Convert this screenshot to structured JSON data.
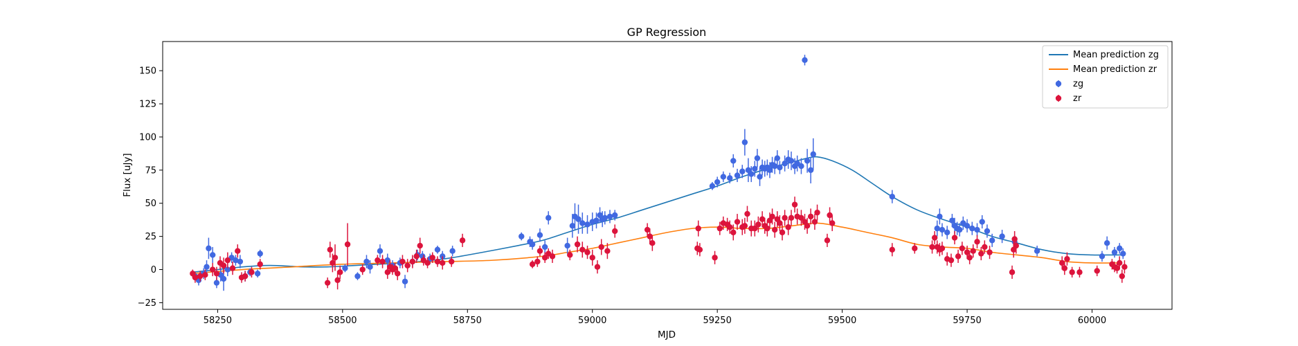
{
  "chart_data": {
    "type": "scatter",
    "title": "GP Regression",
    "xlabel": "MJD",
    "ylabel": "Flux [uJy]",
    "xlim": [
      58140,
      60160
    ],
    "ylim": [
      -30,
      172
    ],
    "xticks": [
      58250,
      58500,
      58750,
      59000,
      59250,
      59500,
      59750,
      60000
    ],
    "yticks": [
      -25,
      0,
      25,
      50,
      75,
      100,
      125,
      150
    ],
    "grid": false,
    "legend_position": "top-right",
    "series": [
      {
        "name": "Mean prediction zg",
        "kind": "line",
        "color": "#1f77b4",
        "x": [
          58200,
          58250,
          58300,
          58340,
          58370,
          58420,
          58470,
          58520,
          58570,
          58620,
          58680,
          58720,
          58780,
          58850,
          58900,
          58950,
          59000,
          59050,
          59100,
          59150,
          59200,
          59250,
          59300,
          59350,
          59400,
          59430,
          59450,
          59480,
          59520,
          59560,
          59600,
          59650,
          59700,
          59750,
          59800,
          59850,
          59900,
          59950,
          60000,
          60030,
          60060
        ],
        "y": [
          -2,
          0,
          2,
          3,
          3,
          2,
          2,
          3,
          4,
          5,
          7,
          9,
          13,
          18,
          22,
          28,
          34,
          39,
          45,
          51,
          57,
          63,
          70,
          76,
          81,
          84,
          85,
          82,
          75,
          65,
          55,
          45,
          38,
          32,
          25,
          20,
          15,
          12,
          11,
          11,
          11
        ]
      },
      {
        "name": "Mean prediction zr",
        "kind": "line",
        "color": "#ff7f0e",
        "x": [
          58200,
          58300,
          58400,
          58500,
          58600,
          58700,
          58800,
          58900,
          58950,
          59000,
          59050,
          59100,
          59150,
          59200,
          59250,
          59300,
          59350,
          59400,
          59450,
          59500,
          59550,
          59600,
          59650,
          59700,
          59750,
          59800,
          59850,
          59900,
          59950,
          60000,
          60060
        ],
        "y": [
          -3,
          0,
          2,
          4,
          5,
          6,
          7,
          10,
          13,
          16,
          20,
          24,
          28,
          31,
          32,
          31,
          31,
          33,
          35,
          32,
          28,
          24,
          19,
          17,
          16,
          13,
          11,
          9,
          6,
          5,
          5
        ]
      },
      {
        "name": "zg",
        "kind": "points",
        "color": "#4169e1",
        "x": [
          58205,
          58212,
          58222,
          58228,
          58232,
          58240,
          58248,
          58256,
          58262,
          58270,
          58278,
          58286,
          58295,
          58305,
          58315,
          58330,
          58335,
          58505,
          58530,
          58548,
          58555,
          58575,
          58590,
          58600,
          58615,
          58625,
          58640,
          58650,
          58660,
          58675,
          58690,
          58700,
          58720,
          58858,
          58875,
          58880,
          58895,
          58905,
          58912,
          58950,
          58960,
          58965,
          58972,
          58980,
          58990,
          59000,
          59008,
          59015,
          59020,
          59025,
          59035,
          59045,
          59240,
          59250,
          59262,
          59275,
          59282,
          59290,
          59300,
          59305,
          59312,
          59318,
          59325,
          59330,
          59335,
          59340,
          59345,
          59350,
          59355,
          59360,
          59365,
          59370,
          59375,
          59385,
          59392,
          59398,
          59405,
          59410,
          59418,
          59425,
          59430,
          59437,
          59442,
          59600,
          59690,
          59695,
          59700,
          59710,
          59720,
          59725,
          59730,
          59735,
          59742,
          59750,
          59760,
          59770,
          59780,
          59790,
          59800,
          59820,
          59845,
          59890,
          60020,
          60030,
          60045,
          60055,
          60062
        ],
        "y": [
          -5,
          -8,
          -3,
          2,
          16,
          11,
          -10,
          -4,
          -7,
          0,
          9,
          7,
          6,
          -5,
          -2,
          -3,
          12,
          1,
          -5,
          6,
          2,
          14,
          7,
          3,
          5,
          -9,
          6,
          11,
          10,
          8,
          15,
          10,
          14,
          25,
          21,
          19,
          26,
          17,
          39,
          18,
          33,
          40,
          38,
          35,
          34,
          36,
          37,
          41,
          38,
          39,
          40,
          41,
          63,
          66,
          70,
          69,
          82,
          71,
          74,
          96,
          75,
          72,
          76,
          84,
          70,
          77,
          76,
          77,
          75,
          79,
          78,
          84,
          77,
          80,
          83,
          82,
          78,
          80,
          78,
          158,
          82,
          75,
          87,
          55,
          31,
          40,
          30,
          28,
          37,
          33,
          31,
          30,
          35,
          33,
          31,
          30,
          36,
          29,
          22,
          25,
          21,
          14,
          10,
          20,
          13,
          16,
          12
        ],
        "err": [
          3,
          4,
          4,
          5,
          8,
          6,
          4,
          5,
          9,
          5,
          4,
          4,
          5,
          4,
          3,
          3,
          3,
          3,
          3,
          5,
          5,
          5,
          5,
          4,
          4,
          5,
          4,
          4,
          4,
          4,
          3,
          4,
          4,
          3,
          4,
          4,
          5,
          5,
          5,
          6,
          9,
          10,
          11,
          8,
          7,
          7,
          6,
          6,
          6,
          5,
          5,
          4,
          3,
          4,
          4,
          4,
          5,
          5,
          5,
          10,
          9,
          6,
          6,
          7,
          7,
          6,
          6,
          6,
          6,
          6,
          6,
          6,
          5,
          6,
          7,
          7,
          6,
          6,
          6,
          4,
          9,
          10,
          12,
          5,
          6,
          6,
          5,
          5,
          5,
          6,
          5,
          5,
          5,
          5,
          5,
          5,
          5,
          5,
          5,
          5,
          5,
          4,
          4,
          5,
          4,
          4,
          4
        ]
      },
      {
        "name": "zr",
        "kind": "points",
        "color": "#dc143c",
        "x": [
          58200,
          58205,
          58215,
          58225,
          58240,
          58248,
          58255,
          58262,
          58270,
          58280,
          58290,
          58298,
          58305,
          58318,
          58335,
          58470,
          58475,
          58480,
          58485,
          58490,
          58495,
          58510,
          58540,
          58570,
          58580,
          58590,
          58595,
          58600,
          58605,
          58610,
          58620,
          58630,
          58640,
          58648,
          58655,
          58662,
          58670,
          58680,
          58690,
          58700,
          58718,
          58740,
          58880,
          58890,
          58895,
          58905,
          58912,
          58920,
          58955,
          58970,
          58980,
          58990,
          59000,
          59010,
          59018,
          59030,
          59045,
          59110,
          59115,
          59120,
          59210,
          59212,
          59215,
          59245,
          59255,
          59262,
          59270,
          59275,
          59282,
          59290,
          59300,
          59305,
          59310,
          59318,
          59325,
          59332,
          59340,
          59345,
          59350,
          59355,
          59360,
          59365,
          59370,
          59375,
          59380,
          59385,
          59392,
          59398,
          59405,
          59410,
          59418,
          59425,
          59430,
          59437,
          59445,
          59450,
          59470,
          59475,
          59480,
          59600,
          59645,
          59680,
          59685,
          59690,
          59695,
          59700,
          59710,
          59718,
          59725,
          59732,
          59740,
          59750,
          59755,
          59762,
          59770,
          59778,
          59785,
          59795,
          59840,
          59843,
          59845,
          59848,
          59940,
          59945,
          59950,
          59960,
          59975,
          60010,
          60040,
          60045,
          60050,
          60055,
          60060,
          60065
        ],
        "y": [
          -3,
          -6,
          -5,
          -4,
          0,
          -3,
          5,
          3,
          7,
          1,
          14,
          -6,
          -5,
          -2,
          4,
          -10,
          15,
          5,
          9,
          -8,
          -2,
          19,
          0,
          7,
          6,
          -2,
          2,
          0,
          1,
          -3,
          6,
          3,
          6,
          10,
          18,
          7,
          5,
          9,
          6,
          5,
          6,
          22,
          4,
          6,
          14,
          9,
          12,
          10,
          11,
          19,
          15,
          13,
          9,
          2,
          17,
          14,
          29,
          30,
          25,
          20,
          16,
          31,
          15,
          9,
          31,
          35,
          34,
          32,
          28,
          36,
          32,
          33,
          42,
          31,
          31,
          34,
          38,
          33,
          31,
          37,
          40,
          30,
          38,
          35,
          28,
          39,
          32,
          39,
          49,
          40,
          39,
          36,
          33,
          40,
          36,
          43,
          22,
          41,
          35,
          15,
          16,
          17,
          24,
          17,
          15,
          16,
          8,
          7,
          24,
          10,
          16,
          13,
          9,
          14,
          21,
          12,
          17,
          13,
          -2,
          15,
          23,
          18,
          5,
          1,
          8,
          -2,
          -2,
          -1,
          4,
          2,
          1,
          5,
          -5,
          2
        ],
        "err": [
          3,
          4,
          4,
          4,
          5,
          5,
          5,
          6,
          6,
          5,
          5,
          4,
          4,
          4,
          4,
          4,
          6,
          7,
          10,
          7,
          5,
          16,
          4,
          4,
          5,
          5,
          5,
          4,
          4,
          5,
          5,
          5,
          5,
          5,
          6,
          4,
          4,
          4,
          4,
          5,
          4,
          5,
          3,
          4,
          4,
          4,
          4,
          5,
          4,
          6,
          6,
          5,
          6,
          5,
          6,
          6,
          5,
          5,
          6,
          6,
          5,
          6,
          5,
          5,
          5,
          5,
          5,
          5,
          6,
          6,
          6,
          6,
          6,
          6,
          6,
          6,
          6,
          6,
          6,
          6,
          6,
          6,
          6,
          6,
          6,
          6,
          6,
          6,
          6,
          6,
          6,
          6,
          6,
          6,
          6,
          6,
          5,
          6,
          6,
          5,
          4,
          5,
          5,
          5,
          5,
          5,
          5,
          5,
          5,
          5,
          5,
          5,
          5,
          5,
          5,
          5,
          5,
          5,
          5,
          6,
          6,
          6,
          5,
          5,
          5,
          4,
          4,
          4,
          4,
          4,
          4,
          5,
          5,
          5
        ]
      }
    ]
  }
}
